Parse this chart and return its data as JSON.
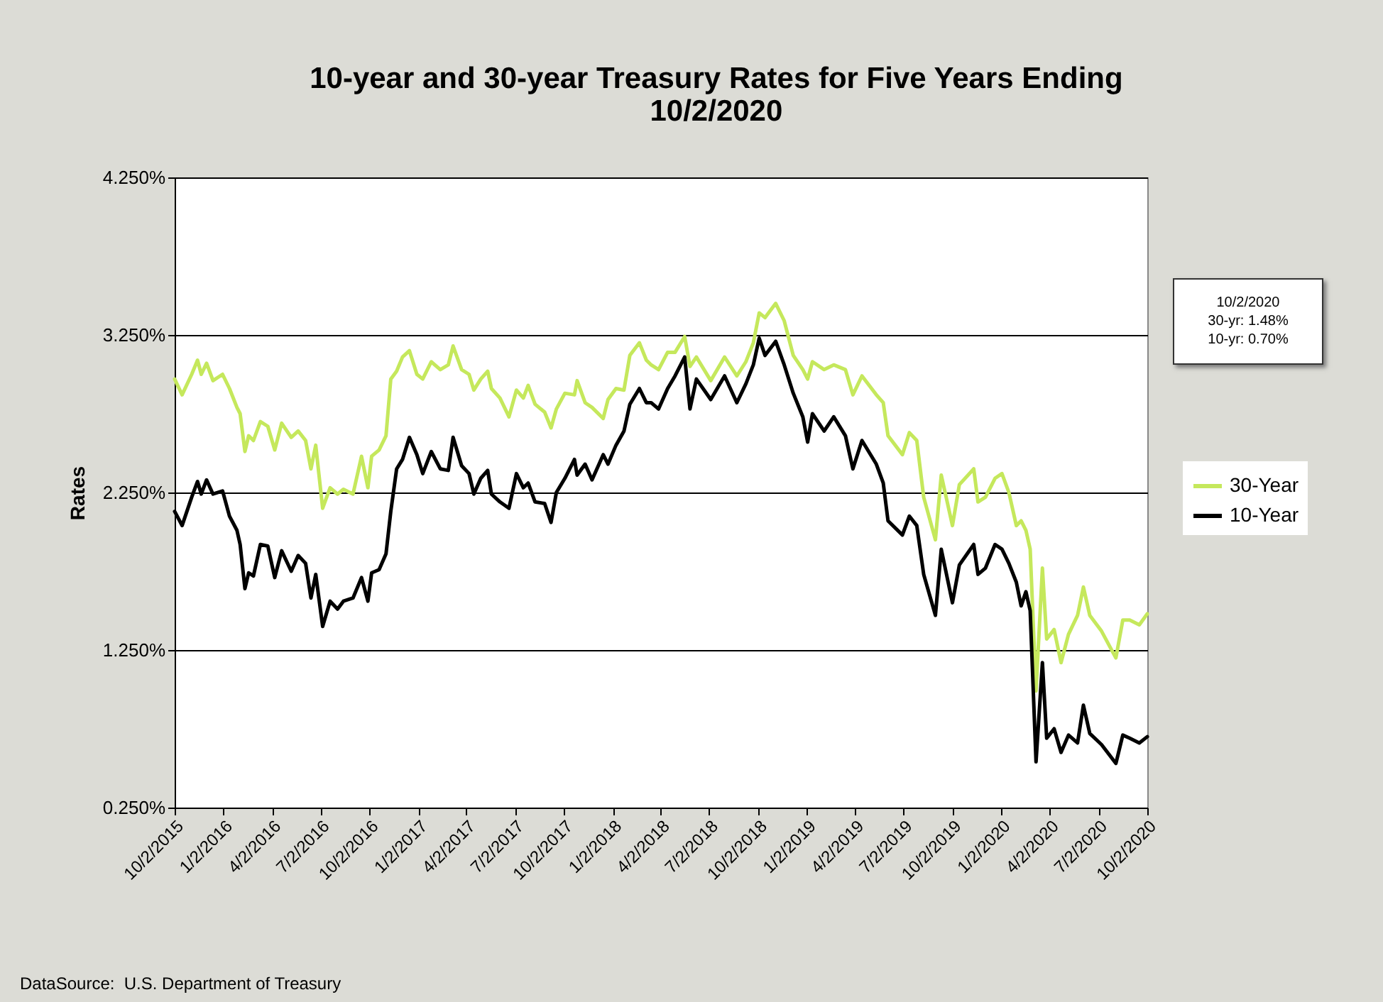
{
  "chart_data": {
    "type": "line",
    "title": "10-year and 30-year Treasury Rates for Five Years Ending 10/2/2020",
    "ylabel": "Rates",
    "annotations": [
      "10/2/2020\n30-yr: 1.48%\n10-yr: 0.70%",
      "DataSource:  U.S. Department of Treasury"
    ],
    "x": [
      "2015-10-02",
      "2015-10-16",
      "2015-11-03",
      "2015-11-14",
      "2015-11-21",
      "2015-12-01",
      "2015-12-13",
      "2015-12-31",
      "2016-01-13",
      "2016-01-27",
      "2016-02-02",
      "2016-02-11",
      "2016-02-18",
      "2016-02-27",
      "2016-03-11",
      "2016-03-25",
      "2016-04-07",
      "2016-04-20",
      "2016-05-08",
      "2016-05-21",
      "2016-06-04",
      "2016-06-14",
      "2016-06-23",
      "2016-07-06",
      "2016-07-20",
      "2016-08-03",
      "2016-08-14",
      "2016-09-01",
      "2016-09-17",
      "2016-09-29",
      "2016-10-06",
      "2016-10-20",
      "2016-11-02",
      "2016-11-11",
      "2016-11-22",
      "2016-12-03",
      "2016-12-16",
      "2016-12-30",
      "2017-01-10",
      "2017-01-26",
      "2017-02-12",
      "2017-02-27",
      "2017-03-08",
      "2017-03-24",
      "2017-04-07",
      "2017-04-16",
      "2017-04-29",
      "2017-05-12",
      "2017-05-19",
      "2017-06-04",
      "2017-06-21",
      "2017-07-05",
      "2017-07-18",
      "2017-07-27",
      "2017-08-09",
      "2017-08-27",
      "2017-09-08",
      "2017-09-18",
      "2017-10-04",
      "2017-10-22",
      "2017-10-27",
      "2017-11-11",
      "2017-11-24",
      "2017-12-15",
      "2017-12-24",
      "2018-01-08",
      "2018-01-23",
      "2018-02-03",
      "2018-02-21",
      "2018-03-06",
      "2018-03-15",
      "2018-03-29",
      "2018-04-15",
      "2018-04-29",
      "2018-05-17",
      "2018-05-27",
      "2018-06-08",
      "2018-07-05",
      "2018-07-31",
      "2018-08-23",
      "2018-09-09",
      "2018-09-23",
      "2018-10-04",
      "2018-10-15",
      "2018-11-04",
      "2018-11-20",
      "2018-12-07",
      "2018-12-25",
      "2019-01-03",
      "2019-01-12",
      "2019-02-03",
      "2019-02-21",
      "2019-03-15",
      "2019-03-29",
      "2019-04-15",
      "2019-05-12",
      "2019-05-25",
      "2019-06-03",
      "2019-06-30",
      "2019-07-13",
      "2019-07-27",
      "2019-08-09",
      "2019-08-31",
      "2019-09-11",
      "2019-10-02",
      "2019-10-15",
      "2019-11-11",
      "2019-11-19",
      "2019-12-03",
      "2019-12-21",
      "2020-01-03",
      "2020-01-16",
      "2020-01-30",
      "2020-02-08",
      "2020-02-17",
      "2020-02-25",
      "2020-03-07",
      "2020-03-19",
      "2020-03-27",
      "2020-04-10",
      "2020-04-23",
      "2020-05-07",
      "2020-05-24",
      "2020-06-04",
      "2020-06-16",
      "2020-07-08",
      "2020-08-04",
      "2020-08-17",
      "2020-08-30",
      "2020-09-17",
      "2020-10-02"
    ],
    "series": [
      {
        "name": "30-Year",
        "color": "#c5e85c",
        "values": [
          2.97,
          2.87,
          3.0,
          3.09,
          3.0,
          3.07,
          2.96,
          3.0,
          2.91,
          2.79,
          2.75,
          2.51,
          2.61,
          2.58,
          2.7,
          2.67,
          2.52,
          2.69,
          2.6,
          2.64,
          2.58,
          2.4,
          2.55,
          2.15,
          2.28,
          2.24,
          2.27,
          2.24,
          2.48,
          2.28,
          2.48,
          2.52,
          2.61,
          2.97,
          3.02,
          3.11,
          3.15,
          3.0,
          2.97,
          3.08,
          3.03,
          3.06,
          3.18,
          3.03,
          3.0,
          2.9,
          2.97,
          3.02,
          2.91,
          2.85,
          2.73,
          2.9,
          2.85,
          2.93,
          2.81,
          2.76,
          2.66,
          2.78,
          2.88,
          2.87,
          2.96,
          2.82,
          2.79,
          2.72,
          2.84,
          2.91,
          2.9,
          3.12,
          3.2,
          3.09,
          3.06,
          3.03,
          3.14,
          3.14,
          3.24,
          3.05,
          3.11,
          2.96,
          3.11,
          2.99,
          3.08,
          3.2,
          3.39,
          3.36,
          3.45,
          3.34,
          3.12,
          3.03,
          2.97,
          3.08,
          3.03,
          3.06,
          3.03,
          2.87,
          2.99,
          2.87,
          2.82,
          2.61,
          2.49,
          2.63,
          2.58,
          2.22,
          1.95,
          2.36,
          2.04,
          2.3,
          2.4,
          2.19,
          2.22,
          2.34,
          2.37,
          2.25,
          2.04,
          2.07,
          2.01,
          1.89,
          0.99,
          1.77,
          1.32,
          1.38,
          1.17,
          1.35,
          1.47,
          1.65,
          1.47,
          1.37,
          1.2,
          1.44,
          1.44,
          1.41,
          1.48
        ]
      },
      {
        "name": "10-Year",
        "color": "#000000",
        "values": [
          2.13,
          2.04,
          2.22,
          2.32,
          2.24,
          2.33,
          2.24,
          2.26,
          2.1,
          2.01,
          1.92,
          1.64,
          1.74,
          1.72,
          1.92,
          1.91,
          1.71,
          1.88,
          1.75,
          1.85,
          1.8,
          1.58,
          1.73,
          1.4,
          1.56,
          1.51,
          1.56,
          1.58,
          1.71,
          1.56,
          1.74,
          1.76,
          1.86,
          2.13,
          2.4,
          2.46,
          2.6,
          2.49,
          2.37,
          2.51,
          2.4,
          2.39,
          2.6,
          2.42,
          2.37,
          2.24,
          2.34,
          2.39,
          2.24,
          2.19,
          2.15,
          2.37,
          2.28,
          2.31,
          2.19,
          2.18,
          2.06,
          2.25,
          2.34,
          2.46,
          2.36,
          2.43,
          2.33,
          2.49,
          2.43,
          2.55,
          2.64,
          2.81,
          2.91,
          2.82,
          2.82,
          2.78,
          2.91,
          2.99,
          3.11,
          2.78,
          2.97,
          2.84,
          2.99,
          2.82,
          2.94,
          3.06,
          3.23,
          3.12,
          3.21,
          3.06,
          2.88,
          2.73,
          2.57,
          2.75,
          2.64,
          2.73,
          2.61,
          2.4,
          2.58,
          2.43,
          2.31,
          2.07,
          1.98,
          2.1,
          2.04,
          1.73,
          1.47,
          1.89,
          1.55,
          1.79,
          1.92,
          1.73,
          1.77,
          1.92,
          1.89,
          1.8,
          1.68,
          1.53,
          1.62,
          1.5,
          0.54,
          1.17,
          0.69,
          0.75,
          0.6,
          0.71,
          0.66,
          0.9,
          0.72,
          0.65,
          0.53,
          0.71,
          0.69,
          0.66,
          0.7
        ]
      }
    ],
    "xlim": [
      "2015-10-02",
      "2020-10-02"
    ],
    "xticks": [
      {
        "value": "2015-10-02",
        "label": "10/2/2015"
      },
      {
        "value": "2016-01-02",
        "label": "1/2/2016"
      },
      {
        "value": "2016-04-02",
        "label": "4/2/2016"
      },
      {
        "value": "2016-07-02",
        "label": "7/2/2016"
      },
      {
        "value": "2016-10-02",
        "label": "10/2/2016"
      },
      {
        "value": "2017-01-02",
        "label": "1/2/2017"
      },
      {
        "value": "2017-04-02",
        "label": "4/2/2017"
      },
      {
        "value": "2017-07-02",
        "label": "7/2/2017"
      },
      {
        "value": "2017-10-02",
        "label": "10/2/2017"
      },
      {
        "value": "2018-01-02",
        "label": "1/2/2018"
      },
      {
        "value": "2018-04-02",
        "label": "4/2/2018"
      },
      {
        "value": "2018-07-02",
        "label": "7/2/2018"
      },
      {
        "value": "2018-10-02",
        "label": "10/2/2018"
      },
      {
        "value": "2019-01-02",
        "label": "1/2/2019"
      },
      {
        "value": "2019-04-02",
        "label": "4/2/2019"
      },
      {
        "value": "2019-07-02",
        "label": "7/2/2019"
      },
      {
        "value": "2019-10-02",
        "label": "10/2/2019"
      },
      {
        "value": "2020-01-02",
        "label": "1/2/2020"
      },
      {
        "value": "2020-04-02",
        "label": "4/2/2020"
      },
      {
        "value": "2020-07-02",
        "label": "7/2/2020"
      },
      {
        "value": "2020-10-02",
        "label": "10/2/2020"
      }
    ],
    "ylim": [
      0.25,
      4.25
    ],
    "yticks": [
      {
        "value": 0.25,
        "label": "0.250%"
      },
      {
        "value": 1.25,
        "label": "1.250%"
      },
      {
        "value": 2.25,
        "label": "2.250%"
      },
      {
        "value": 3.25,
        "label": "3.250%"
      },
      {
        "value": 4.25,
        "label": "4.250%"
      }
    ],
    "grid": "y",
    "legend": "right",
    "line_style": "solid",
    "marker": "none"
  }
}
